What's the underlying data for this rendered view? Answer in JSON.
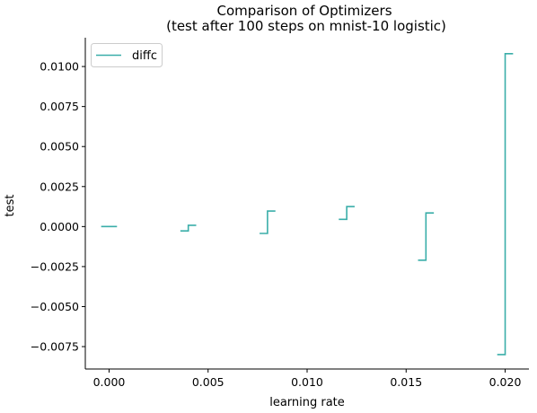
{
  "chart_data": {
    "type": "line",
    "drawstyle": "steps-mid",
    "title": "Comparison of Optimizers",
    "subtitle": "(test after 100 steps on mnist-10 logistic)",
    "xlabel": "learning rate",
    "ylabel": "test",
    "xlim": [
      -0.0012,
      0.0212
    ],
    "ylim": [
      -0.0089,
      0.0118
    ],
    "xticks": [
      0.0,
      0.005,
      0.01,
      0.015,
      0.02
    ],
    "xtick_labels": [
      "0.000",
      "0.005",
      "0.010",
      "0.015",
      "0.020"
    ],
    "yticks": [
      -0.0075,
      -0.005,
      -0.0025,
      0.0,
      0.0025,
      0.005,
      0.0075,
      0.01
    ],
    "ytick_labels": [
      "−0.0075",
      "−0.0050",
      "−0.0025",
      "0.0000",
      "0.0025",
      "0.0050",
      "0.0075",
      "0.0100"
    ],
    "grid": false,
    "legend_position": "top-left",
    "series": [
      {
        "name": "diffc",
        "color": "#3aaea9",
        "groups": [
          {
            "x": [
              -0.0001,
              0.0001
            ],
            "y": [
              0.0,
              0.0
            ],
            "halfwidth": 0.0003
          },
          {
            "x": [
              0.0039,
              0.0041
            ],
            "y": [
              -0.00027,
              8e-05
            ],
            "halfwidth": 0.0003
          },
          {
            "x": [
              0.0079,
              0.0081
            ],
            "y": [
              -0.00043,
              0.00097
            ],
            "halfwidth": 0.0003
          },
          {
            "x": [
              0.0119,
              0.0121
            ],
            "y": [
              0.00045,
              0.00125
            ],
            "halfwidth": 0.0003
          },
          {
            "x": [
              0.0159,
              0.0161
            ],
            "y": [
              -0.0021,
              0.00085
            ],
            "halfwidth": 0.0003
          },
          {
            "x": [
              0.0199,
              0.0201
            ],
            "y": [
              -0.008,
              0.0108
            ],
            "halfwidth": 0.0003
          }
        ]
      }
    ]
  }
}
